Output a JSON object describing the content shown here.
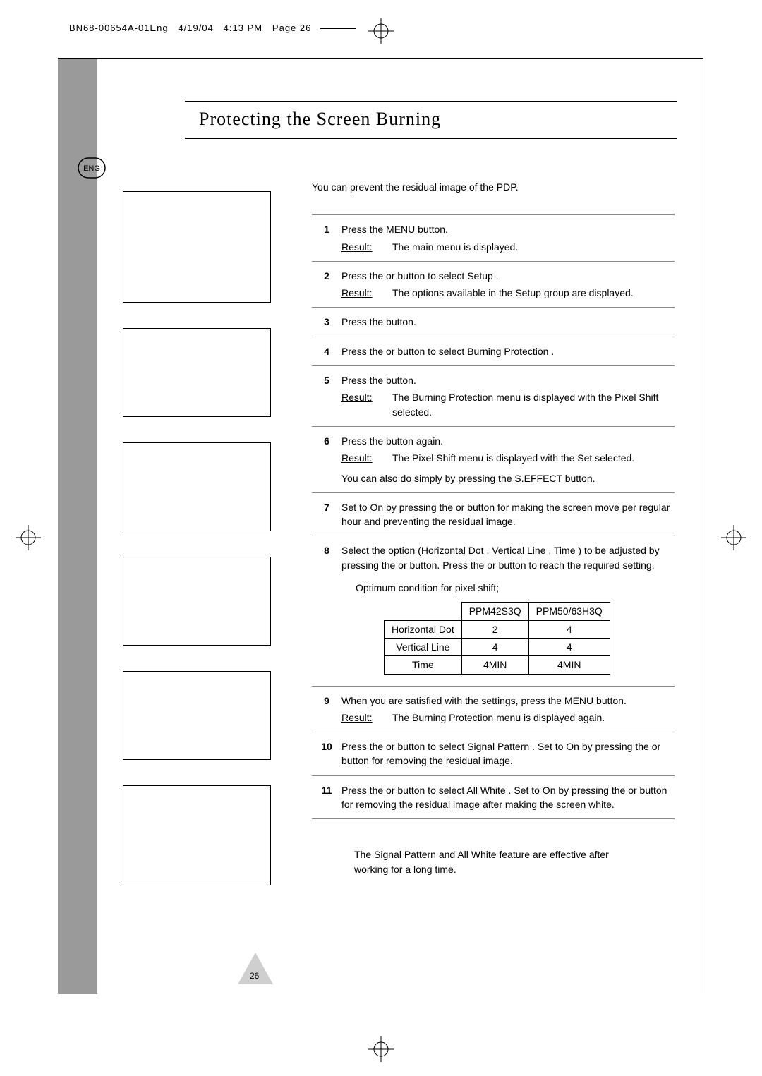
{
  "header": {
    "doc_id": "BN68-00654A-01Eng",
    "date": "4/19/04",
    "time": "4:13 PM",
    "page_label": "Page 26"
  },
  "lang_badge": "ENG",
  "title": "Protecting the Screen Burning",
  "intro": "You can prevent the residual image of the PDP.",
  "result_word": "Result:",
  "placeholder_heights": [
    158,
    126,
    126,
    126,
    126,
    142
  ],
  "steps": [
    {
      "n": "1",
      "body": "Press the MENU button.",
      "result": "The main menu is displayed."
    },
    {
      "n": "2",
      "body": "Press the    or    button to select Setup .",
      "result": "The options available in the Setup  group are displayed."
    },
    {
      "n": "3",
      "body": "Press the    button."
    },
    {
      "n": "4",
      "body": "Press the    or    button to select Burning Protection        ."
    },
    {
      "n": "5",
      "body": "Press the    button.",
      "result": "The Burning Protection        menu is displayed with the Pixel Shift       selected."
    },
    {
      "n": "6",
      "body": "Press the    button again.",
      "result": "The Pixel Shift        menu is displayed with the Set selected.",
      "extra": "You can also do simply by pressing the S.EFFECT button."
    },
    {
      "n": "7",
      "body": "Set to On by pressing the    or    button for making the screen move per regular hour and preventing the residual image."
    },
    {
      "n": "8",
      "body": "Select the option (Horizontal Dot        , Vertical Line        , Time ) to be adjusted by pressing the    or    button. Press the    or    button to reach the required setting.",
      "opt_caption": "Optimum condition for pixel shift;"
    },
    {
      "n": "9",
      "body": "When you are satisfied with the settings, press the MENU button.",
      "result": "The Burning Protection        menu is displayed again."
    },
    {
      "n": "10",
      "body": "Press the    or    button to select Signal Pattern       . Set to On by pressing the    or    button for removing the residual image."
    },
    {
      "n": "11",
      "body": "Press the    or    button to select All White       . Set to On by pressing the    or    button for removing the residual image after making the screen white."
    }
  ],
  "opt_table": {
    "columns": [
      "",
      "PPM42S3Q",
      "PPM50/63H3Q"
    ],
    "rows": [
      [
        "Horizontal Dot",
        "2",
        "4"
      ],
      [
        "Vertical Line",
        "4",
        "4"
      ],
      [
        "Time",
        "4MIN",
        "4MIN"
      ]
    ]
  },
  "footnote": "The Signal Pattern         and All White         feature are effective after working for a long time.",
  "page_number": "26",
  "colors": {
    "strip": "#9a9a9a",
    "rule": "#8a8a8a",
    "text": "#000000",
    "bg": "#ffffff"
  }
}
